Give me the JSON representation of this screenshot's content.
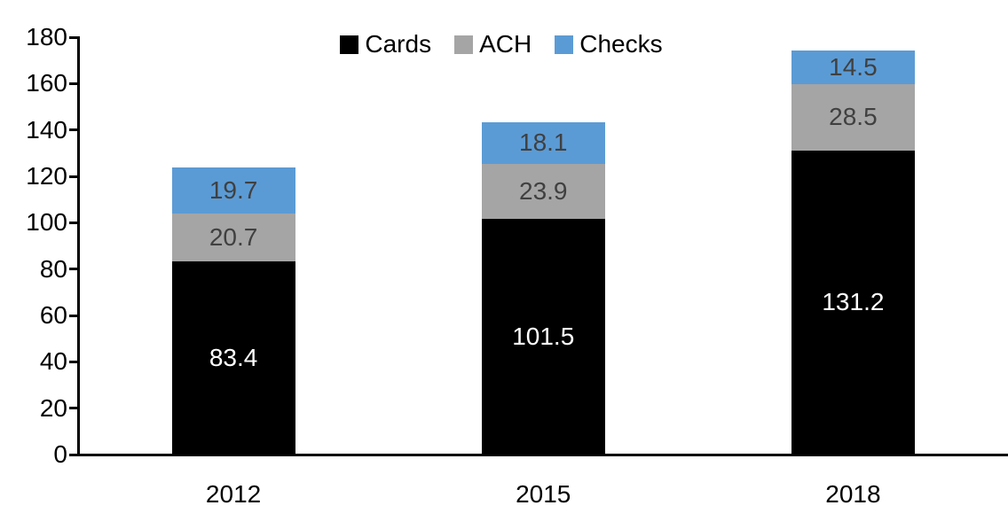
{
  "chart_data": {
    "type": "bar",
    "stacked": true,
    "title": "",
    "categories": [
      "2012",
      "2015",
      "2018"
    ],
    "series": [
      {
        "name": "Cards",
        "color": "#000000",
        "label_color": "#ffffff",
        "values": [
          83.4,
          101.5,
          131.2
        ]
      },
      {
        "name": "ACH",
        "color": "#a5a5a5",
        "label_color": "#404040",
        "values": [
          20.7,
          23.9,
          28.5
        ]
      },
      {
        "name": "Checks",
        "color": "#5b9bd5",
        "label_color": "#404040",
        "values": [
          19.7,
          18.1,
          14.5
        ]
      }
    ],
    "totals": [
      123.8,
      143.5,
      174.2
    ],
    "xlabel": "",
    "ylabel": "",
    "ylim": [
      0,
      180
    ],
    "ytick_step": 20,
    "yticks": [
      0,
      20,
      40,
      60,
      80,
      100,
      120,
      140,
      160,
      180
    ],
    "grid": false,
    "legend_position": "top",
    "axis_color": "#000000",
    "tick_label_color": "#000000",
    "background_color": "#ffffff",
    "value_label_format": "one_decimal"
  }
}
